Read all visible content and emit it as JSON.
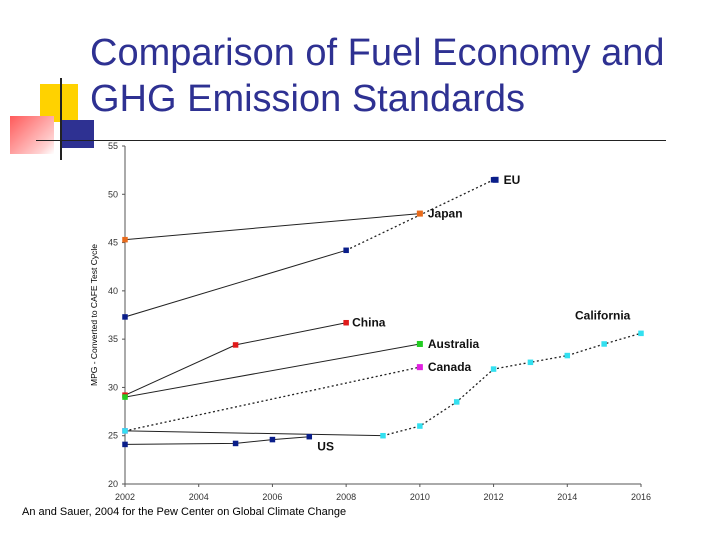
{
  "slide": {
    "title_line1": "Comparison of Fuel Economy and",
    "title_line2": "GHG Emission Standards",
    "caption": "An and Sauer, 2004 for the Pew Center on Global Climate Change"
  },
  "chart_data": {
    "type": "line",
    "title": "Comparison of Fuel Economy and GHG Emission Standards",
    "xlabel": "",
    "ylabel": "MPG - Converted to CAFE Test Cycle",
    "xlim": [
      2002,
      2016
    ],
    "ylim": [
      20,
      55
    ],
    "xticks": [
      2002,
      2004,
      2006,
      2008,
      2010,
      2012,
      2014,
      2016
    ],
    "yticks": [
      20,
      25,
      30,
      35,
      40,
      45,
      50,
      55
    ],
    "grid": false,
    "series": [
      {
        "name": "EU",
        "label": "EU",
        "color": "#0a1e8a",
        "segments": [
          {
            "style": "solid",
            "points": [
              [
                2002,
                37.3
              ],
              [
                2008,
                44.2
              ]
            ]
          },
          {
            "style": "dotted",
            "points": [
              [
                2008,
                44.2
              ],
              [
                2012,
                51.5
              ]
            ]
          }
        ]
      },
      {
        "name": "Japan",
        "label": "Japan",
        "color": "#e86b1c",
        "segments": [
          {
            "style": "solid",
            "points": [
              [
                2002,
                45.3
              ],
              [
                2010,
                48.0
              ]
            ]
          }
        ]
      },
      {
        "name": "China",
        "label": "China",
        "color": "#e01a1a",
        "segments": [
          {
            "style": "solid",
            "points": [
              [
                2002,
                29.2
              ],
              [
                2005,
                34.4
              ],
              [
                2008,
                36.7
              ]
            ]
          }
        ]
      },
      {
        "name": "Australia",
        "label": "Australia",
        "color": "#22cc22",
        "segments": [
          {
            "style": "solid",
            "points": [
              [
                2002,
                29.0
              ],
              [
                2010,
                34.5
              ]
            ]
          }
        ]
      },
      {
        "name": "Canada",
        "label": "Canada",
        "color": "#e020e0",
        "segments": [
          {
            "style": "dotted",
            "points": [
              [
                2002,
                25.5
              ],
              [
                2010,
                32.1
              ]
            ]
          }
        ]
      },
      {
        "name": "US",
        "label": "US",
        "color": "#0a1e8a",
        "segments": [
          {
            "style": "solid",
            "points": [
              [
                2002,
                24.1
              ],
              [
                2005,
                24.2
              ],
              [
                2006,
                24.6
              ],
              [
                2007,
                24.9
              ]
            ]
          }
        ]
      },
      {
        "name": "California",
        "label": "California",
        "color": "#33e0f0",
        "segments": [
          {
            "style": "solid",
            "points": [
              [
                2002,
                25.5
              ],
              [
                2009,
                25.0
              ]
            ]
          },
          {
            "style": "dotted",
            "points": [
              [
                2009,
                25.0
              ],
              [
                2010,
                26.0
              ],
              [
                2011,
                28.5
              ],
              [
                2012,
                31.9
              ],
              [
                2013,
                32.6
              ],
              [
                2014,
                33.3
              ],
              [
                2015,
                34.5
              ],
              [
                2016,
                35.6
              ]
            ]
          }
        ]
      }
    ]
  }
}
